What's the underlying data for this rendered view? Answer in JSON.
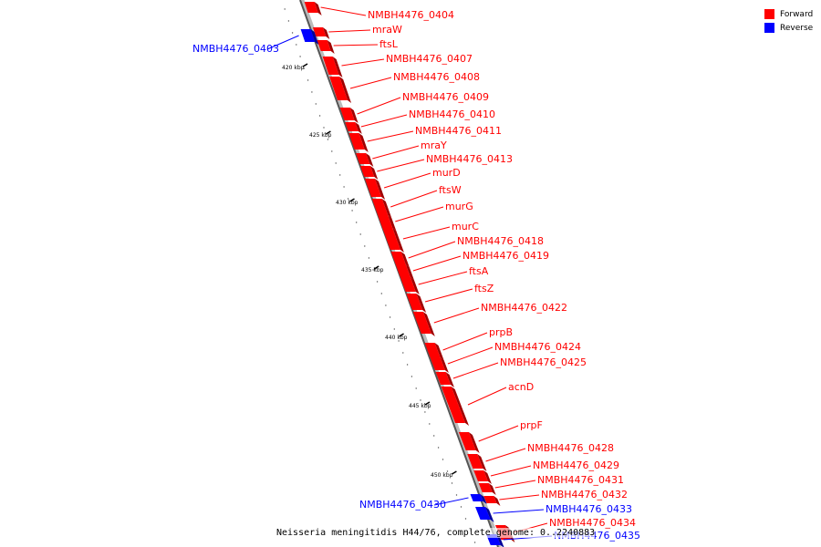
{
  "legend": {
    "items": [
      {
        "label": "Forward",
        "color": "#ff0000"
      },
      {
        "label": "Reverse",
        "color": "#0000ff"
      }
    ]
  },
  "caption": "Neisseria meningitidis H44/76, complete genome: 0..2240883",
  "ticks": [
    "420 kbp",
    "425 kbp",
    "430 kbp",
    "435 kbp",
    "440 kbp",
    "445 kbp",
    "450 kbp"
  ],
  "genes": [
    {
      "label": "NMBH4476_0404",
      "strand": "forward"
    },
    {
      "label": "mraW",
      "strand": "forward"
    },
    {
      "label": "ftsL",
      "strand": "forward"
    },
    {
      "label": "NMBH4476_0403",
      "strand": "reverse"
    },
    {
      "label": "NMBH4476_0407",
      "strand": "forward"
    },
    {
      "label": "NMBH4476_0408",
      "strand": "forward"
    },
    {
      "label": "NMBH4476_0409",
      "strand": "forward"
    },
    {
      "label": "NMBH4476_0410",
      "strand": "forward"
    },
    {
      "label": "NMBH4476_0411",
      "strand": "forward"
    },
    {
      "label": "mraY",
      "strand": "forward"
    },
    {
      "label": "NMBH4476_0413",
      "strand": "forward"
    },
    {
      "label": "murD",
      "strand": "forward"
    },
    {
      "label": "ftsW",
      "strand": "forward"
    },
    {
      "label": "murG",
      "strand": "forward"
    },
    {
      "label": "murC",
      "strand": "forward"
    },
    {
      "label": "NMBH4476_0418",
      "strand": "forward"
    },
    {
      "label": "NMBH4476_0419",
      "strand": "forward"
    },
    {
      "label": "ftsA",
      "strand": "forward"
    },
    {
      "label": "ftsZ",
      "strand": "forward"
    },
    {
      "label": "NMBH4476_0422",
      "strand": "forward"
    },
    {
      "label": "prpB",
      "strand": "forward"
    },
    {
      "label": "NMBH4476_0424",
      "strand": "forward"
    },
    {
      "label": "NMBH4476_0425",
      "strand": "forward"
    },
    {
      "label": "acnD",
      "strand": "forward"
    },
    {
      "label": "prpF",
      "strand": "forward"
    },
    {
      "label": "NMBH4476_0428",
      "strand": "forward"
    },
    {
      "label": "NMBH4476_0429",
      "strand": "forward"
    },
    {
      "label": "NMBH4476_0431",
      "strand": "forward"
    },
    {
      "label": "NMBH4476_0432",
      "strand": "forward"
    },
    {
      "label": "NMBH4476_0430",
      "strand": "reverse"
    },
    {
      "label": "NMBH4476_0433",
      "strand": "reverse"
    },
    {
      "label": "NMBH4476_0434",
      "strand": "forward"
    },
    {
      "label": "NMBH4476_0435",
      "strand": "reverse"
    }
  ]
}
